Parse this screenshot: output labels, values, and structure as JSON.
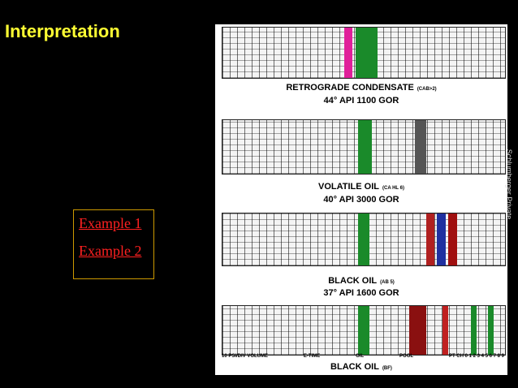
{
  "header": {
    "title": "Interpretation"
  },
  "links": [
    "Example 1",
    "Example 2"
  ],
  "sidebar": "Schlumberger Private",
  "panels": [
    {
      "label": "RETROGRADE CONDENSATE",
      "note": "(CAB>2)",
      "detail": "44° API 1100 GOR"
    },
    {
      "label": "VOLATILE OIL",
      "note": "(CA HL 6)",
      "detail": "40° API 3000 GOR"
    },
    {
      "label": "BLACK OIL",
      "note": "(AB 5)",
      "detail": "37° API 1600 GOR"
    }
  ],
  "footer": {
    "axis_labels": [
      "10 PSI/DIV VOLUME",
      "E-TIME",
      "OIL",
      "POOL",
      "PT CH 0 1 2 3 4 5 6 7 8 9"
    ],
    "label": "BLACK OIL",
    "note": "(BF)"
  }
}
